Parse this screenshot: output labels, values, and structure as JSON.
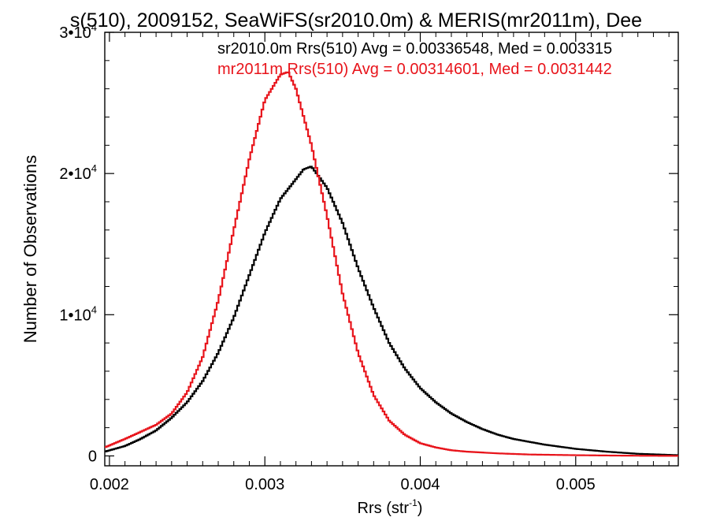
{
  "chart_data": {
    "type": "line",
    "title": "s(510), 2009152, SeaWiFS(sr2010.0m) & MERIS(mr2011m), Dee",
    "xlabel": "Rrs (str",
    "xlabel_sup": "-1",
    "xlabel_close": ")",
    "ylabel": "Number of Observations",
    "xlim": [
      0.00197,
      0.00566
    ],
    "ylim": [
      -700,
      30000
    ],
    "x_ticks": [
      {
        "value": 0.002,
        "label": "0.002"
      },
      {
        "value": 0.003,
        "label": "0.003"
      },
      {
        "value": 0.004,
        "label": "0.004"
      },
      {
        "value": 0.005,
        "label": "0.005"
      }
    ],
    "y_ticks": [
      {
        "value": 0,
        "label": "0",
        "sup": ""
      },
      {
        "value": 10000,
        "label": "1•10",
        "sup": "4"
      },
      {
        "value": 20000,
        "label": "2•10",
        "sup": "4"
      },
      {
        "value": 30000,
        "label": "3•10",
        "sup": "4"
      }
    ],
    "grid": false,
    "legend_position": "top-right",
    "series": [
      {
        "name": "sr2010.0m Rrs(510) Avg = 0.00336548, Med = 0.003315",
        "color": "#000000",
        "x": [
          0.00197,
          0.0021,
          0.0022,
          0.0023,
          0.0024,
          0.0025,
          0.0026,
          0.0027,
          0.0028,
          0.0029,
          0.003,
          0.0031,
          0.0032,
          0.00325,
          0.0033,
          0.0034,
          0.0035,
          0.0036,
          0.0037,
          0.0038,
          0.0039,
          0.004,
          0.0041,
          0.0042,
          0.0043,
          0.0044,
          0.0045,
          0.0046,
          0.0048,
          0.005,
          0.0052,
          0.0054,
          0.00566
        ],
        "y": [
          300,
          700,
          1200,
          1800,
          2700,
          3800,
          5300,
          7300,
          9800,
          12800,
          15800,
          18200,
          19600,
          20300,
          20500,
          19000,
          16500,
          13300,
          10500,
          8000,
          6200,
          4800,
          3800,
          3000,
          2400,
          1900,
          1500,
          1200,
          800,
          500,
          300,
          150,
          50
        ]
      },
      {
        "name": "mr2011m Rrs(510) Avg = 0.00314601, Med = 0.0031442",
        "color": "#e8141b",
        "x": [
          0.00197,
          0.0021,
          0.0022,
          0.0023,
          0.0024,
          0.0025,
          0.0026,
          0.0027,
          0.0028,
          0.0029,
          0.003,
          0.0031,
          0.00315,
          0.0032,
          0.0033,
          0.0034,
          0.0035,
          0.0036,
          0.0037,
          0.0038,
          0.0039,
          0.004,
          0.0041,
          0.0042,
          0.0043,
          0.0045,
          0.0047,
          0.005,
          0.0053,
          0.00566
        ],
        "y": [
          600,
          1200,
          1700,
          2200,
          3000,
          4500,
          7000,
          11000,
          16000,
          21000,
          25200,
          27000,
          27200,
          26000,
          22000,
          17000,
          11500,
          7300,
          4300,
          2500,
          1500,
          900,
          600,
          400,
          300,
          180,
          100,
          50,
          20,
          0
        ]
      }
    ]
  }
}
